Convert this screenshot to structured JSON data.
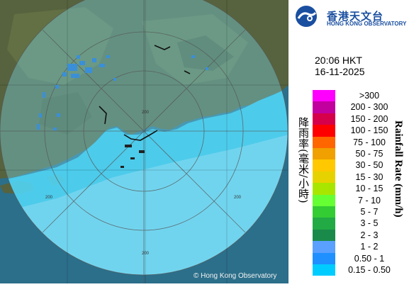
{
  "header": {
    "org_name_cn": "香港天文台",
    "org_name_en": "HONG KONG OBSERVATORY"
  },
  "time": "20:06 HKT",
  "date": "16-11-2025",
  "legend": {
    "label_cn": "降雨率(毫米/小時)",
    "label_en": "Rainfall Rate (mm/h)",
    "items": [
      {
        "label": ">300",
        "color": "#ff00ff"
      },
      {
        "label": "200 - 300",
        "color": "#c2009e"
      },
      {
        "label": "150 - 200",
        "color": "#d6004a"
      },
      {
        "label": "100 - 150",
        "color": "#ff0000"
      },
      {
        "label": "75 - 100",
        "color": "#ff6600"
      },
      {
        "label": "50 - 75",
        "color": "#f0a000"
      },
      {
        "label": "30 - 50",
        "color": "#ffc800"
      },
      {
        "label": "15 - 30",
        "color": "#e6d200"
      },
      {
        "label": "10 - 15",
        "color": "#a8e600"
      },
      {
        "label": "7 - 10",
        "color": "#66ff33"
      },
      {
        "label": "5 - 7",
        "color": "#33cc33"
      },
      {
        "label": "3 - 5",
        "color": "#22aa44"
      },
      {
        "label": "2 - 3",
        "color": "#1a8a4a"
      },
      {
        "label": "1 - 2",
        "color": "#5aa0ff"
      },
      {
        "label": "0.50 - 1",
        "color": "#1e90ff"
      },
      {
        "label": "0.15 - 0.50",
        "color": "#00ccff"
      }
    ]
  },
  "map": {
    "range_labels": [
      "200",
      "200",
      "200",
      "200"
    ],
    "copyright": "© Hong Kong Observatory"
  }
}
